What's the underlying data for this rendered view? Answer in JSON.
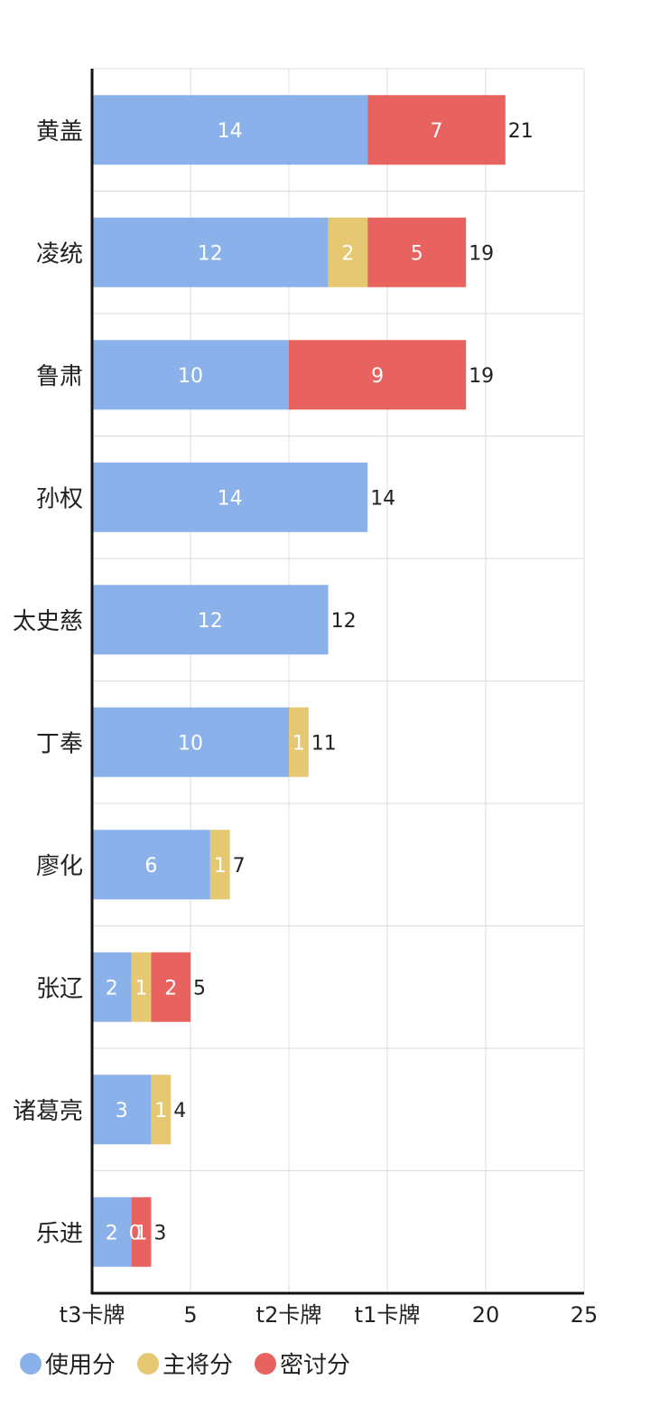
{
  "chart_data": {
    "type": "bar",
    "orientation": "horizontal",
    "stacked": true,
    "categories": [
      "黄盖",
      "凌统",
      "鲁肃",
      "孙权",
      "太史慈",
      "丁奉",
      "廖化",
      "张辽",
      "诸葛亮",
      "乐进"
    ],
    "series": [
      {
        "name": "使用分",
        "color": "#8bb1ea",
        "values": [
          14,
          12,
          10,
          14,
          12,
          10,
          6,
          2,
          3,
          2
        ]
      },
      {
        "name": "主将分",
        "color": "#e6c872",
        "values": [
          0,
          2,
          0,
          0,
          0,
          1,
          1,
          1,
          1,
          0
        ]
      },
      {
        "name": "密讨分",
        "color": "#e8625f",
        "values": [
          7,
          5,
          9,
          0,
          0,
          0,
          0,
          2,
          0,
          1
        ]
      }
    ],
    "segment_labels": [
      [
        "14",
        "",
        "7"
      ],
      [
        "12",
        "2",
        "5"
      ],
      [
        "10",
        "",
        "9"
      ],
      [
        "14",
        "",
        ""
      ],
      [
        "12",
        "",
        ""
      ],
      [
        "10",
        "1",
        ""
      ],
      [
        "6",
        "1",
        ""
      ],
      [
        "2",
        "1",
        "2"
      ],
      [
        "3",
        "1",
        ""
      ],
      [
        "2",
        "0",
        "1"
      ]
    ],
    "totals": [
      21,
      19,
      19,
      14,
      12,
      11,
      7,
      5,
      4,
      3
    ],
    "xlim": [
      0,
      25
    ],
    "x_ticks": [
      {
        "value": 0,
        "label": "t3卡牌"
      },
      {
        "value": 5,
        "label": "5"
      },
      {
        "value": 10,
        "label": "t2卡牌"
      },
      {
        "value": 15,
        "label": "t1卡牌"
      },
      {
        "value": 20,
        "label": "20"
      },
      {
        "value": 25,
        "label": "25"
      }
    ],
    "grid": true,
    "legend_position": "bottom-left"
  }
}
